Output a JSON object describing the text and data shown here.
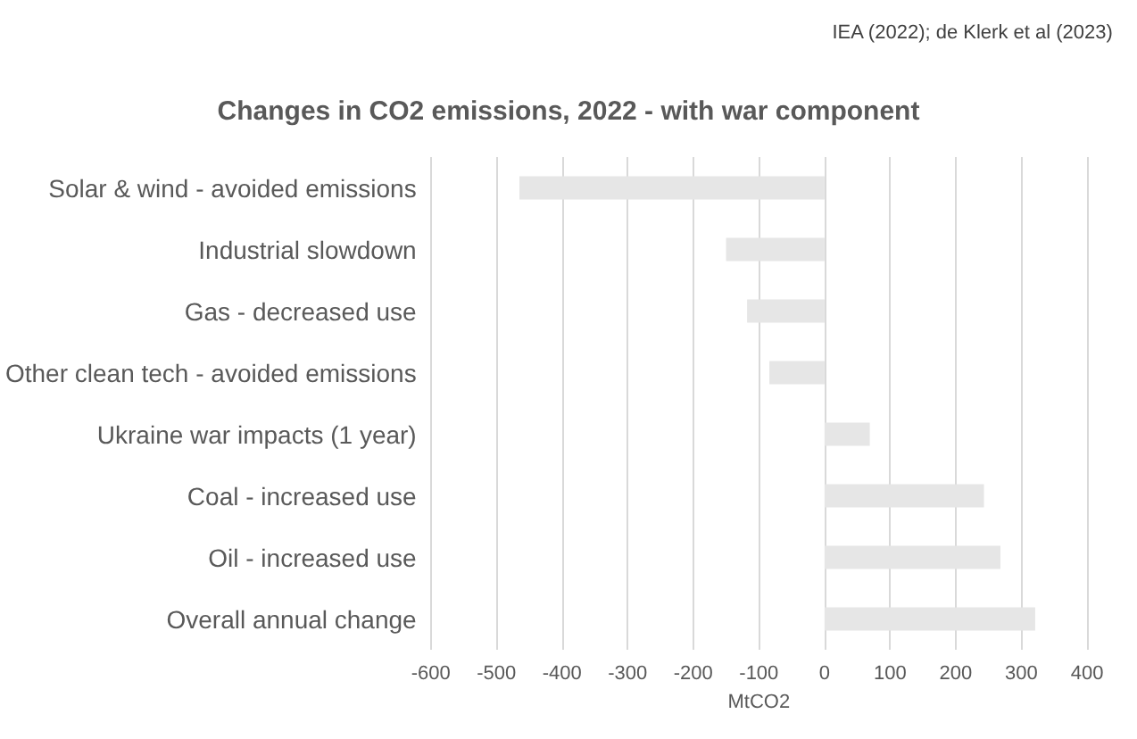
{
  "chart_data": {
    "type": "bar",
    "orientation": "horizontal",
    "title": "Changes in CO2 emissions, 2022 - with war component",
    "xlabel": "MtCO2",
    "annotations": [
      "IEA (2022); de Klerk et al (2023)"
    ],
    "categories": [
      "Solar & wind - avoided emissions",
      "Industrial slowdown",
      "Gas - decreased use",
      "Other clean tech - avoided emissions",
      "Ukraine war impacts (1 year)",
      "Coal - increased use",
      "Oil - increased use",
      "Overall annual change"
    ],
    "values": [
      -465,
      -150,
      -118,
      -84,
      69,
      243,
      268,
      321
    ],
    "color": "#e6e6e6",
    "xlim": [
      -600,
      400
    ],
    "xticks": [
      -600,
      -500,
      -400,
      -300,
      -200,
      -100,
      0,
      100,
      200,
      300,
      400
    ],
    "grid": "x"
  }
}
